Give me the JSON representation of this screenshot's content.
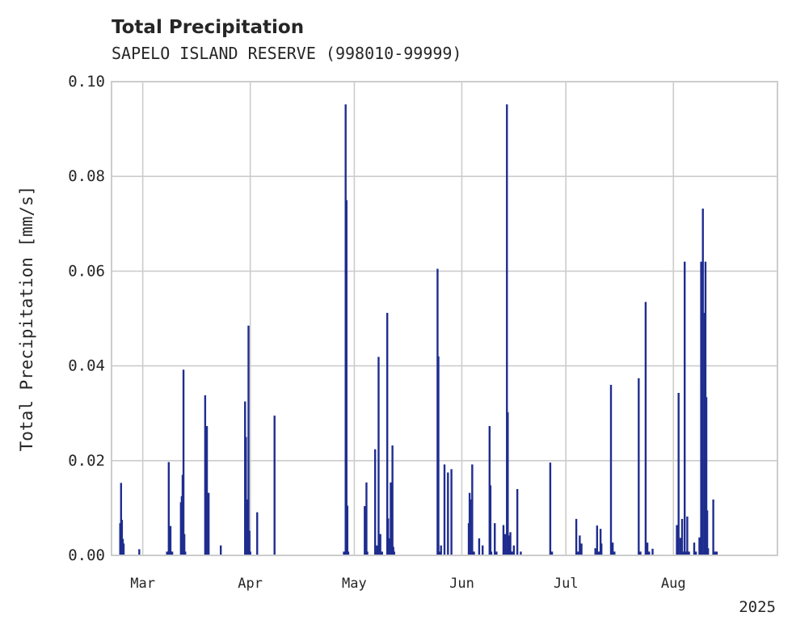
{
  "chart_data": {
    "type": "bar",
    "title": "Total Precipitation",
    "subtitle": "SAPELO ISLAND RESERVE (998010-99999)",
    "ylabel": "Total Precipitation [mm/s]",
    "xlabel": "",
    "x_offset_label": "2025",
    "xlim": [
      "2025-02-20",
      "2025-08-31"
    ],
    "ylim": [
      0.0,
      0.1
    ],
    "grid": true,
    "bar_color": "#1f2d8f",
    "y_ticks": [
      "0.00",
      "0.02",
      "0.04",
      "0.06",
      "0.08",
      "0.10"
    ],
    "x_ticks": [
      {
        "date": "2025-03-01",
        "label": "Mar"
      },
      {
        "date": "2025-04-01",
        "label": "Apr"
      },
      {
        "date": "2025-05-01",
        "label": "May"
      },
      {
        "date": "2025-06-01",
        "label": "Jun"
      },
      {
        "date": "2025-07-01",
        "label": "Jul"
      },
      {
        "date": "2025-08-01",
        "label": "Aug"
      }
    ],
    "x": [
      "2025-02-22T12:00",
      "2025-02-22T18:00",
      "2025-02-23T00:00",
      "2025-02-23T06:00",
      "2025-02-23T12:00",
      "2025-02-28T00:00",
      "2025-03-08T00:00",
      "2025-03-08T12:00",
      "2025-03-09T00:00",
      "2025-03-09T12:00",
      "2025-03-12T00:00",
      "2025-03-12T06:00",
      "2025-03-12T12:00",
      "2025-03-12T18:00",
      "2025-03-13T00:00",
      "2025-03-13T06:00",
      "2025-03-19T00:00",
      "2025-03-19T12:00",
      "2025-03-20T00:00",
      "2025-03-23T12:00",
      "2025-03-30T12:00",
      "2025-03-30T18:00",
      "2025-03-31T00:00",
      "2025-03-31T06:00",
      "2025-03-31T12:00",
      "2025-03-31T18:00",
      "2025-04-01T00:00",
      "2025-04-03T00:00",
      "2025-04-08T00:00",
      "2025-04-28T00:00",
      "2025-04-28T12:00",
      "2025-04-28T18:00",
      "2025-04-29T00:00",
      "2025-04-29T06:00",
      "2025-05-04T00:00",
      "2025-05-04T12:00",
      "2025-05-04T18:00",
      "2025-05-07T00:00",
      "2025-05-07T12:00",
      "2025-05-08T00:00",
      "2025-05-08T12:00",
      "2025-05-09T00:00",
      "2025-05-10T12:00",
      "2025-05-10T18:00",
      "2025-05-11T00:00",
      "2025-05-11T12:00",
      "2025-05-12T00:00",
      "2025-05-12T06:00",
      "2025-05-12T12:00",
      "2025-05-25T00:00",
      "2025-05-25T06:00",
      "2025-05-25T12:00",
      "2025-05-26T00:00",
      "2025-05-27T00:00",
      "2025-05-28T00:00",
      "2025-05-29T00:00",
      "2025-06-03T00:00",
      "2025-06-03T06:00",
      "2025-06-03T12:00",
      "2025-06-04T00:00",
      "2025-06-04T12:00",
      "2025-06-06T00:00",
      "2025-06-07T00:00",
      "2025-06-09T00:00",
      "2025-06-09T06:00",
      "2025-06-09T12:00",
      "2025-06-10T12:00",
      "2025-06-11T00:00",
      "2025-06-13T00:00",
      "2025-06-13T12:00",
      "2025-06-14T00:00",
      "2025-06-14T06:00",
      "2025-06-14T18:00",
      "2025-06-15T00:00",
      "2025-06-15T06:00",
      "2025-06-15T12:00",
      "2025-06-16T00:00",
      "2025-06-17T00:00",
      "2025-06-18T00:00",
      "2025-06-26T12:00",
      "2025-06-27T00:00",
      "2025-07-04T00:00",
      "2025-07-04T12:00",
      "2025-07-05T00:00",
      "2025-07-05T12:00",
      "2025-07-09T12:00",
      "2025-07-10T00:00",
      "2025-07-10T12:00",
      "2025-07-11T00:00",
      "2025-07-11T06:00",
      "2025-07-14T00:00",
      "2025-07-14T12:00",
      "2025-07-15T00:00",
      "2025-07-22T00:00",
      "2025-07-22T12:00",
      "2025-07-24T00:00",
      "2025-07-24T12:00",
      "2025-07-25T00:00",
      "2025-07-26T00:00",
      "2025-08-02T00:00",
      "2025-08-02T12:00",
      "2025-08-03T00:00",
      "2025-08-03T12:00",
      "2025-08-04T00:00",
      "2025-08-04T06:00",
      "2025-08-04T12:00",
      "2025-08-05T00:00",
      "2025-08-05T12:00",
      "2025-08-07T00:00",
      "2025-08-07T12:00",
      "2025-08-08T12:00",
      "2025-08-09T00:00",
      "2025-08-09T06:00",
      "2025-08-09T12:00",
      "2025-08-10T00:00",
      "2025-08-10T06:00",
      "2025-08-10T12:00",
      "2025-08-10T18:00",
      "2025-08-11T00:00",
      "2025-08-12T12:00",
      "2025-08-13T00:00",
      "2025-08-13T12:00"
    ],
    "values": [
      0.0068,
      0.0153,
      0.0075,
      0.0035,
      0.0025,
      0.0013,
      0.0008,
      0.0197,
      0.0062,
      0.0008,
      0.0112,
      0.0125,
      0.017,
      0.0392,
      0.0045,
      0.0008,
      0.0338,
      0.0273,
      0.0132,
      0.0021,
      0.0325,
      0.025,
      0.0118,
      0.0112,
      0.0485,
      0.0052,
      0.0008,
      0.0091,
      0.0295,
      0.0008,
      0.0952,
      0.075,
      0.0105,
      0.0008,
      0.0104,
      0.0154,
      0.0008,
      0.0224,
      0.0021,
      0.0419,
      0.0045,
      0.0008,
      0.0512,
      0.0078,
      0.0036,
      0.0154,
      0.0232,
      0.0018,
      0.0008,
      0.0605,
      0.042,
      0.0008,
      0.0021,
      0.0192,
      0.0175,
      0.0182,
      0.0068,
      0.0132,
      0.0118,
      0.0192,
      0.0008,
      0.0036,
      0.0021,
      0.0273,
      0.0148,
      0.0008,
      0.0068,
      0.0008,
      0.0064,
      0.0045,
      0.0952,
      0.0302,
      0.0042,
      0.0049,
      0.0008,
      0.0008,
      0.0021,
      0.014,
      0.0008,
      0.0196,
      0.0008,
      0.0077,
      0.0008,
      0.0042,
      0.0025,
      0.0015,
      0.0063,
      0.0008,
      0.0056,
      0.0025,
      0.036,
      0.0027,
      0.0008,
      0.0374,
      0.0008,
      0.0535,
      0.0027,
      0.0008,
      0.0014,
      0.0064,
      0.0343,
      0.0037,
      0.0077,
      0.0008,
      0.062,
      0.0008,
      0.0082,
      0.0008,
      0.0027,
      0.0008,
      0.0038,
      0.062,
      0.0366,
      0.0732,
      0.0512,
      0.062,
      0.0334,
      0.0095,
      0.0015,
      0.0118,
      0.0008,
      0.0008
    ]
  }
}
